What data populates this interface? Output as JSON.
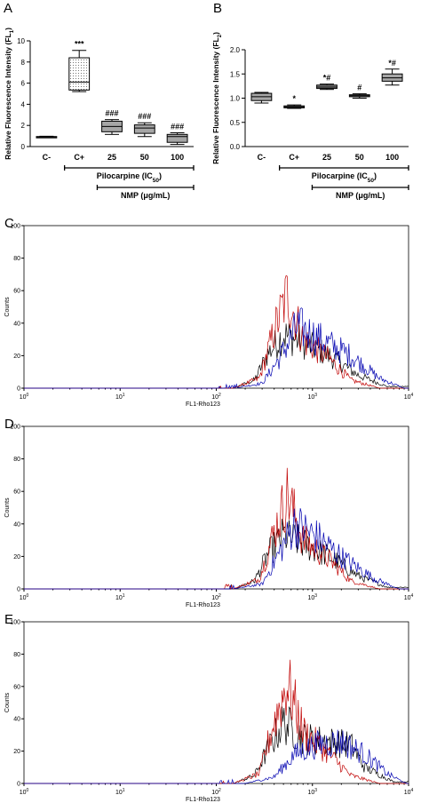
{
  "chart_data": [
    {
      "panel": "A",
      "type": "box",
      "ylabel": "Relative Fluorescence Intensity (FL",
      "ylabel_sub": "1",
      "ylabel_end": ")",
      "ylim": [
        0,
        10
      ],
      "yticks": [
        "0",
        "2",
        "4",
        "6",
        "8",
        "10"
      ],
      "categories": [
        "C-",
        "C+",
        "25",
        "50",
        "100"
      ],
      "boxes": [
        {
          "min": 0.85,
          "q1": 0.85,
          "median": 0.9,
          "q3": 0.95,
          "max": 0.98,
          "fill": "#8c8c8c",
          "annotation": ""
        },
        {
          "min": 5.2,
          "q1": 5.35,
          "median": 6.1,
          "q3": 8.4,
          "max": 9.1,
          "fill": "dotted",
          "annotation": "***"
        },
        {
          "min": 1.15,
          "q1": 1.4,
          "median": 1.9,
          "q3": 2.4,
          "max": 2.55,
          "fill": "#a6a6a6",
          "annotation": "###"
        },
        {
          "min": 0.95,
          "q1": 1.25,
          "median": 1.75,
          "q3": 2.05,
          "max": 2.25,
          "fill": "#a6a6a6",
          "annotation": "###"
        },
        {
          "min": 0.2,
          "q1": 0.4,
          "median": 0.95,
          "q3": 1.15,
          "max": 1.3,
          "fill": "#a6a6a6",
          "annotation": "###"
        }
      ],
      "brackets": [
        "Pilocarpine (IC",
        "NMP (μg/mL)"
      ],
      "bracket_sub": "50",
      "bracket_end": ")"
    },
    {
      "panel": "B",
      "type": "box",
      "ylabel": "Relative Fluorescence Intensity (FL",
      "ylabel_sub": "2",
      "ylabel_end": ")",
      "ylim": [
        0,
        2.0
      ],
      "yticks": [
        "0.0",
        "0.5",
        "1.0",
        "1.5",
        "2.0"
      ],
      "categories": [
        "C-",
        "C+",
        "25",
        "50",
        "100"
      ],
      "boxes": [
        {
          "min": 0.9,
          "q1": 0.95,
          "median": 1.03,
          "q3": 1.1,
          "max": 1.12,
          "fill": "#a6a6a6",
          "annotation": ""
        },
        {
          "min": 0.79,
          "q1": 0.8,
          "median": 0.82,
          "q3": 0.84,
          "max": 0.86,
          "fill": "#8c8c8c",
          "annotation": "*"
        },
        {
          "min": 1.18,
          "q1": 1.2,
          "median": 1.23,
          "q3": 1.27,
          "max": 1.29,
          "fill": "#8c8c8c",
          "annotation": "*#"
        },
        {
          "min": 1.0,
          "q1": 1.03,
          "median": 1.05,
          "q3": 1.07,
          "max": 1.09,
          "fill": "#8c8c8c",
          "annotation": "#"
        },
        {
          "min": 1.27,
          "q1": 1.35,
          "median": 1.42,
          "q3": 1.5,
          "max": 1.6,
          "fill": "#a6a6a6",
          "annotation": "*#"
        }
      ],
      "brackets": [
        "Pilocarpine (IC",
        "NMP (μg/mL)"
      ],
      "bracket_sub": "50",
      "bracket_end": ")"
    },
    {
      "panel": "C",
      "type": "line",
      "ylabel": "Counts",
      "xlabel": "FL1-Rho123",
      "xscale": "log",
      "xlim": [
        1,
        10000
      ],
      "ylim": [
        0,
        100
      ],
      "yticks": [
        "0",
        "20",
        "40",
        "60",
        "80",
        "100"
      ],
      "xticks": [
        {
          "b": "10",
          "e": "0"
        },
        {
          "b": "10",
          "e": "1"
        },
        {
          "b": "10",
          "e": "2"
        },
        {
          "b": "10",
          "e": "3"
        },
        {
          "b": "10",
          "e": "4"
        }
      ],
      "series": [
        {
          "color": "#000000",
          "values": [
            {
              "x": 150,
              "y": 0
            },
            {
              "x": 250,
              "y": 5
            },
            {
              "x": 350,
              "y": 22
            },
            {
              "x": 500,
              "y": 33
            },
            {
              "x": 800,
              "y": 28
            },
            {
              "x": 1500,
              "y": 20
            },
            {
              "x": 3000,
              "y": 8
            },
            {
              "x": 6000,
              "y": 1
            }
          ]
        },
        {
          "color": "#c00000",
          "values": [
            {
              "x": 150,
              "y": 0
            },
            {
              "x": 280,
              "y": 6
            },
            {
              "x": 400,
              "y": 35
            },
            {
              "x": 550,
              "y": 58
            },
            {
              "x": 800,
              "y": 30
            },
            {
              "x": 1500,
              "y": 18
            },
            {
              "x": 2500,
              "y": 5
            },
            {
              "x": 5000,
              "y": 0
            }
          ]
        },
        {
          "color": "#0000b0",
          "values": [
            {
              "x": 150,
              "y": 0
            },
            {
              "x": 300,
              "y": 3
            },
            {
              "x": 450,
              "y": 18
            },
            {
              "x": 700,
              "y": 38
            },
            {
              "x": 1200,
              "y": 30
            },
            {
              "x": 2500,
              "y": 20
            },
            {
              "x": 5000,
              "y": 6
            },
            {
              "x": 9000,
              "y": 0
            }
          ]
        }
      ]
    },
    {
      "panel": "D",
      "type": "line",
      "ylabel": "Counts",
      "xlabel": "FL1-Rho123",
      "xscale": "log",
      "xlim": [
        1,
        10000
      ],
      "ylim": [
        0,
        100
      ],
      "yticks": [
        "0",
        "20",
        "40",
        "60",
        "80",
        "100"
      ],
      "xticks": [
        {
          "b": "10",
          "e": "0"
        },
        {
          "b": "10",
          "e": "1"
        },
        {
          "b": "10",
          "e": "2"
        },
        {
          "b": "10",
          "e": "3"
        },
        {
          "b": "10",
          "e": "4"
        }
      ],
      "series": [
        {
          "color": "#000000",
          "values": [
            {
              "x": 150,
              "y": 0
            },
            {
              "x": 250,
              "y": 5
            },
            {
              "x": 350,
              "y": 22
            },
            {
              "x": 500,
              "y": 33
            },
            {
              "x": 800,
              "y": 28
            },
            {
              "x": 1500,
              "y": 20
            },
            {
              "x": 3000,
              "y": 8
            },
            {
              "x": 6000,
              "y": 1
            }
          ]
        },
        {
          "color": "#c00000",
          "values": [
            {
              "x": 150,
              "y": 0
            },
            {
              "x": 280,
              "y": 6
            },
            {
              "x": 400,
              "y": 35
            },
            {
              "x": 550,
              "y": 58
            },
            {
              "x": 800,
              "y": 30
            },
            {
              "x": 1500,
              "y": 18
            },
            {
              "x": 2500,
              "y": 5
            },
            {
              "x": 5000,
              "y": 0
            }
          ]
        },
        {
          "color": "#0000b0",
          "values": [
            {
              "x": 150,
              "y": 0
            },
            {
              "x": 300,
              "y": 3
            },
            {
              "x": 450,
              "y": 22
            },
            {
              "x": 650,
              "y": 40
            },
            {
              "x": 1100,
              "y": 32
            },
            {
              "x": 2200,
              "y": 18
            },
            {
              "x": 4500,
              "y": 6
            },
            {
              "x": 8000,
              "y": 0
            }
          ]
        }
      ]
    },
    {
      "panel": "E",
      "type": "line",
      "ylabel": "Counts",
      "xlabel": "FL1-Rho123",
      "xscale": "log",
      "xlim": [
        1,
        10000
      ],
      "ylim": [
        0,
        100
      ],
      "yticks": [
        "0",
        "20",
        "40",
        "60",
        "80",
        "100"
      ],
      "xticks": [
        {
          "b": "10",
          "e": "0"
        },
        {
          "b": "10",
          "e": "1"
        },
        {
          "b": "10",
          "e": "2"
        },
        {
          "b": "10",
          "e": "3"
        },
        {
          "b": "10",
          "e": "4"
        }
      ],
      "series": [
        {
          "color": "#000000",
          "values": [
            {
              "x": 150,
              "y": 0
            },
            {
              "x": 250,
              "y": 5
            },
            {
              "x": 350,
              "y": 22
            },
            {
              "x": 500,
              "y": 38
            },
            {
              "x": 800,
              "y": 28
            },
            {
              "x": 1500,
              "y": 26
            },
            {
              "x": 2500,
              "y": 24
            },
            {
              "x": 3500,
              "y": 10
            },
            {
              "x": 7000,
              "y": 1
            }
          ]
        },
        {
          "color": "#c00000",
          "values": [
            {
              "x": 150,
              "y": 0
            },
            {
              "x": 280,
              "y": 6
            },
            {
              "x": 400,
              "y": 38
            },
            {
              "x": 550,
              "y": 62
            },
            {
              "x": 800,
              "y": 32
            },
            {
              "x": 1500,
              "y": 18
            },
            {
              "x": 2500,
              "y": 5
            },
            {
              "x": 5000,
              "y": 0
            }
          ]
        },
        {
          "color": "#0000b0",
          "values": [
            {
              "x": 200,
              "y": 0
            },
            {
              "x": 400,
              "y": 4
            },
            {
              "x": 650,
              "y": 18
            },
            {
              "x": 1100,
              "y": 24
            },
            {
              "x": 2000,
              "y": 26
            },
            {
              "x": 3500,
              "y": 18
            },
            {
              "x": 6000,
              "y": 6
            },
            {
              "x": 9500,
              "y": 0
            }
          ]
        }
      ]
    }
  ]
}
